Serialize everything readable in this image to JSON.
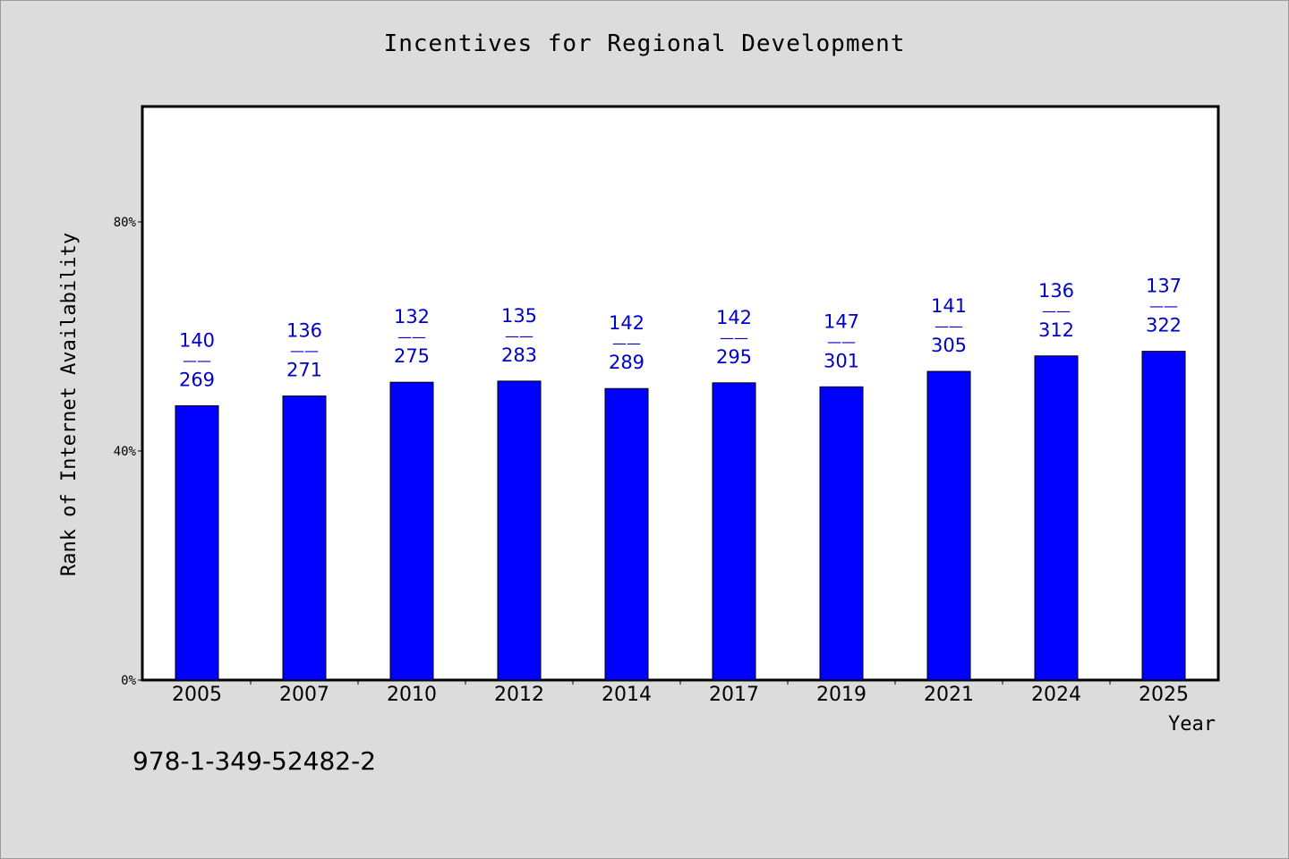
{
  "chart_data": {
    "type": "bar",
    "title": "Incentives for Regional Development",
    "xlabel": "Year",
    "ylabel": "Rank of Internet Availability",
    "ylim": [
      0,
      100
    ],
    "yticks": [
      {
        "value": 0,
        "label": "0%"
      },
      {
        "value": 40,
        "label": "40%"
      },
      {
        "value": 80,
        "label": "80%"
      }
    ],
    "categories": [
      "2005",
      "2007",
      "2010",
      "2012",
      "2014",
      "2017",
      "2019",
      "2021",
      "2024",
      "2025"
    ],
    "values": [
      47.9,
      49.6,
      52.0,
      52.2,
      50.9,
      51.9,
      51.2,
      53.9,
      56.6,
      57.4
    ],
    "bar_labels": [
      {
        "top": "140",
        "sep": "——",
        "bottom": "269"
      },
      {
        "top": "136",
        "sep": "——",
        "bottom": "271"
      },
      {
        "top": "132",
        "sep": "——",
        "bottom": "275"
      },
      {
        "top": "135",
        "sep": "——",
        "bottom": "283"
      },
      {
        "top": "142",
        "sep": "——",
        "bottom": "289"
      },
      {
        "top": "142",
        "sep": "——",
        "bottom": "295"
      },
      {
        "top": "147",
        "sep": "——",
        "bottom": "301"
      },
      {
        "top": "141",
        "sep": "——",
        "bottom": "305"
      },
      {
        "top": "136",
        "sep": "——",
        "bottom": "312"
      },
      {
        "top": "137",
        "sep": "——",
        "bottom": "322"
      }
    ],
    "colors": {
      "bar": "#0000ff",
      "label": "#0000cc",
      "background": "#dcdcdc",
      "plot": "#ffffff"
    },
    "grid": false,
    "legend": "none"
  },
  "footer": {
    "isbn": "978-1-349-52482-2"
  }
}
